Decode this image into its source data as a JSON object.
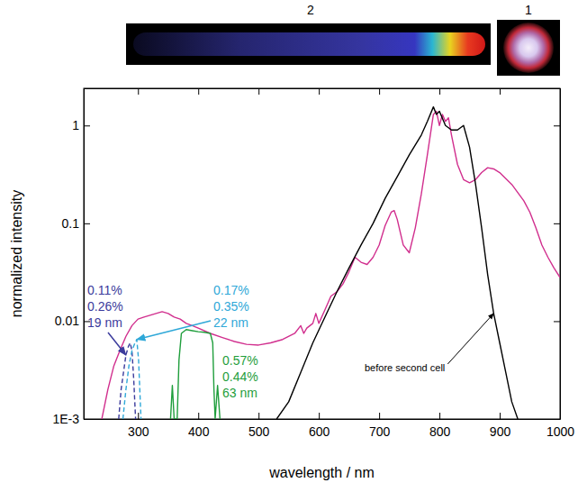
{
  "chart_data": {
    "type": "line",
    "x_label": "wavelength / nm",
    "y_label": "normalized intensity",
    "log": "y",
    "grid": false,
    "xlim": [
      210,
      1000
    ],
    "xticks": [
      300,
      400,
      500,
      600,
      700,
      800,
      900,
      1000
    ],
    "ylim": [
      0.001,
      2.4
    ],
    "yticks": [
      {
        "value": 0.001,
        "label": "1E-3"
      },
      0.01,
      0.1,
      1
    ],
    "insets": [
      {
        "label": "2"
      },
      {
        "label": "1"
      }
    ],
    "series": [
      {
        "color": "#d12f8e",
        "line_style": "solid",
        "x": [
          240,
          250,
          260,
          270,
          280,
          290,
          300,
          310,
          320,
          330,
          340,
          350,
          360,
          370,
          380,
          390,
          400,
          420,
          440,
          460,
          480,
          500,
          520,
          540,
          560,
          570,
          575,
          580,
          590,
          595,
          600,
          610,
          620,
          630,
          640,
          650,
          660,
          670,
          680,
          690,
          700,
          710,
          720,
          725,
          730,
          740,
          750,
          760,
          770,
          780,
          790,
          795,
          800,
          805,
          810,
          815,
          820,
          830,
          840,
          850,
          860,
          870,
          880,
          890,
          900,
          920,
          940,
          950,
          960,
          970,
          980,
          990,
          1000
        ],
        "values": [
          0.001,
          0.002,
          0.0035,
          0.005,
          0.007,
          0.009,
          0.0105,
          0.011,
          0.0115,
          0.012,
          0.0125,
          0.012,
          0.011,
          0.0105,
          0.0095,
          0.009,
          0.0085,
          0.0075,
          0.0068,
          0.0062,
          0.0058,
          0.0057,
          0.006,
          0.0065,
          0.0075,
          0.009,
          0.0075,
          0.0085,
          0.0095,
          0.012,
          0.0095,
          0.013,
          0.018,
          0.02,
          0.024,
          0.032,
          0.045,
          0.04,
          0.038,
          0.045,
          0.06,
          0.095,
          0.13,
          0.135,
          0.11,
          0.06,
          0.05,
          0.09,
          0.2,
          0.5,
          1.3,
          1.4,
          1.0,
          1.3,
          1.1,
          1.2,
          0.8,
          0.4,
          0.28,
          0.26,
          0.28,
          0.33,
          0.37,
          0.36,
          0.33,
          0.25,
          0.17,
          0.13,
          0.09,
          0.06,
          0.045,
          0.035,
          0.028
        ]
      },
      {
        "name": "before second cell",
        "color": "#000000",
        "line_style": "solid",
        "x": [
          530,
          550,
          570,
          590,
          610,
          630,
          650,
          670,
          690,
          710,
          730,
          750,
          770,
          780,
          790,
          795,
          800,
          810,
          820,
          830,
          840,
          850,
          860,
          870,
          880,
          890,
          900,
          910,
          920,
          930
        ],
        "values": [
          0.001,
          0.0015,
          0.003,
          0.006,
          0.011,
          0.02,
          0.035,
          0.06,
          0.1,
          0.18,
          0.3,
          0.5,
          0.8,
          1.1,
          1.55,
          1.3,
          1.4,
          1.0,
          0.9,
          0.9,
          1.0,
          0.6,
          0.25,
          0.09,
          0.03,
          0.012,
          0.006,
          0.003,
          0.0015,
          0.001
        ]
      },
      {
        "color": "#3b3b9c",
        "line_style": "dashed",
        "annotation": [
          "0.11%",
          "0.26%",
          "19 nm"
        ],
        "x": [
          268,
          272,
          276,
          280,
          284,
          287,
          290,
          293,
          296
        ],
        "values": [
          0.001,
          0.002,
          0.003,
          0.0045,
          0.0055,
          0.006,
          0.005,
          0.0025,
          0.001
        ]
      },
      {
        "color": "#2fa8d8",
        "line_style": "dashed",
        "annotation": [
          "0.17%",
          "0.35%",
          "22 nm"
        ],
        "x": [
          275,
          280,
          285,
          290,
          295,
          298,
          301,
          303,
          305
        ],
        "values": [
          0.001,
          0.002,
          0.0035,
          0.005,
          0.006,
          0.0065,
          0.004,
          0.002,
          0.001
        ]
      },
      {
        "color": "#1f9e3c",
        "line_style": "solid",
        "annotation": [
          "0.57%",
          "0.44%",
          "63 nm"
        ],
        "x": [
          354,
          357,
          360,
          365,
          368,
          372,
          380,
          390,
          400,
          410,
          420,
          424,
          426,
          428,
          432,
          436
        ],
        "values": [
          0.001,
          0.0022,
          0.001,
          0.001,
          0.004,
          0.0075,
          0.0082,
          0.008,
          0.0078,
          0.0077,
          0.0075,
          0.006,
          0.002,
          0.001,
          0.0022,
          0.001
        ]
      }
    ]
  }
}
